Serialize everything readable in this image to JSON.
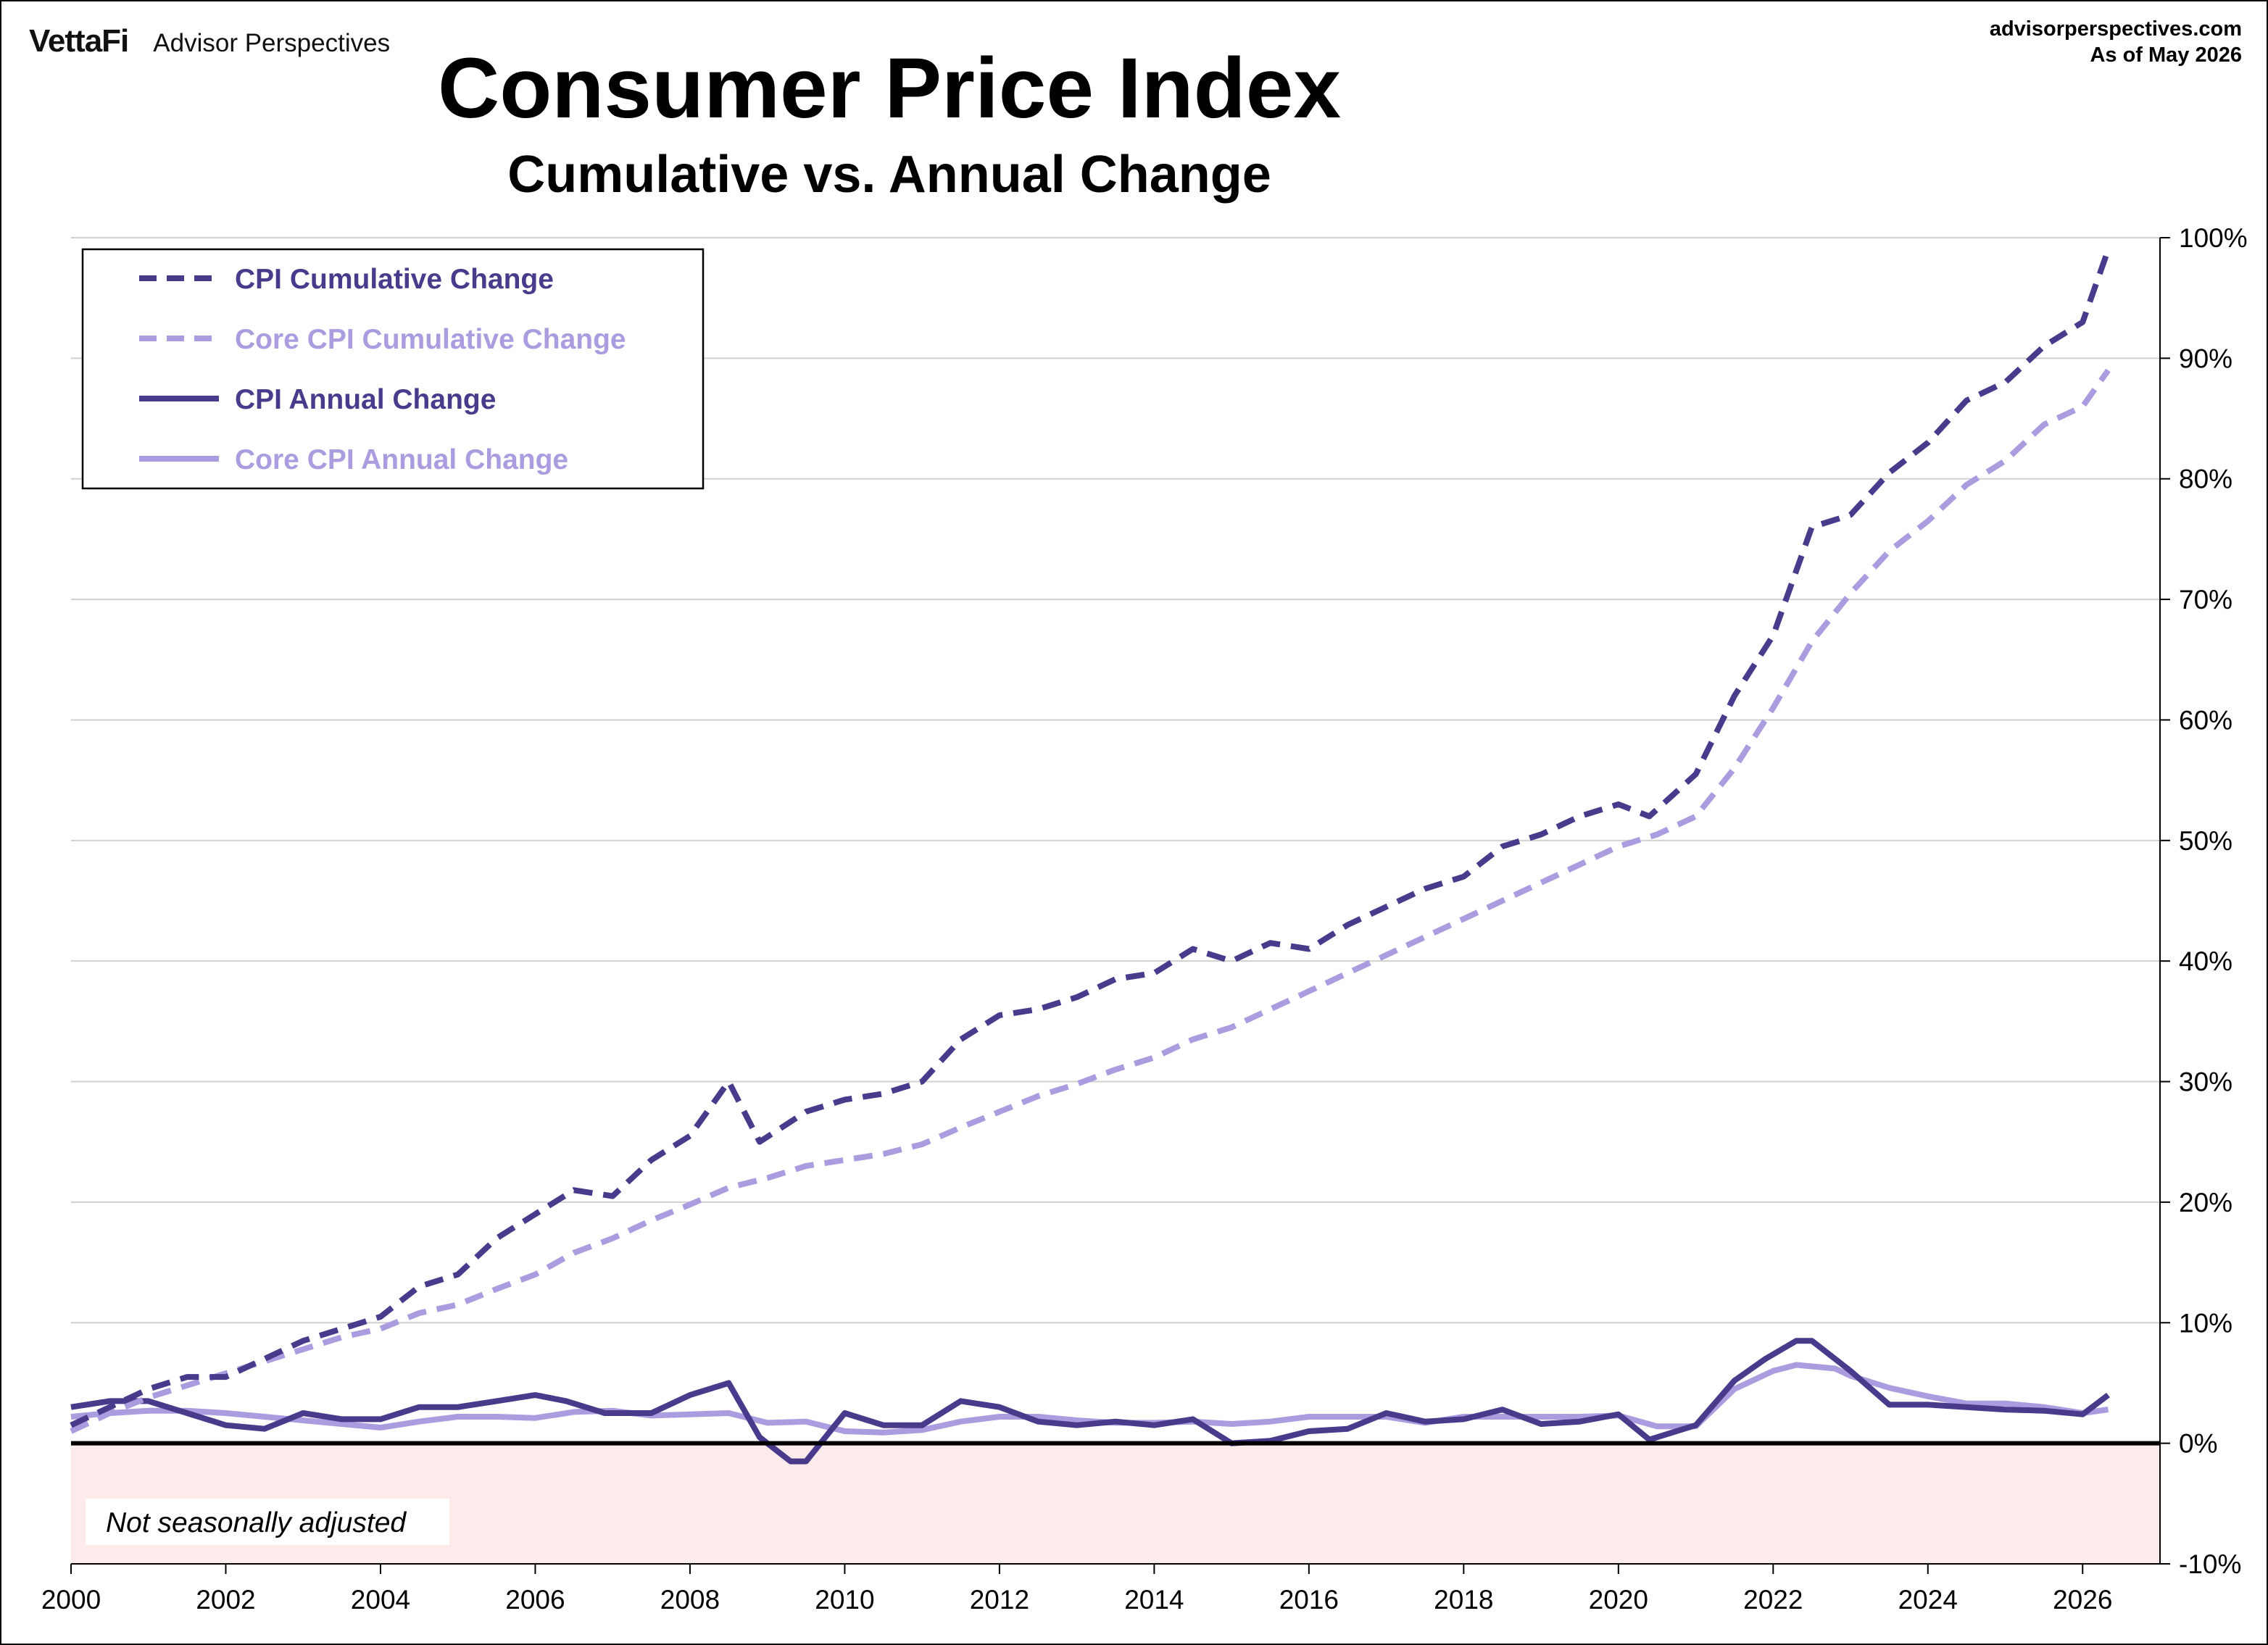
{
  "header": {
    "brand_logo": "VettaFi",
    "brand_name": "Advisor Perspectives",
    "source_url": "advisorperspectives.com",
    "as_of": "As of May 2026"
  },
  "note": "Not seasonally adjusted",
  "colors": {
    "cpi": "#4a3a8c",
    "core": "#ab9ce0",
    "negative_band": "#fdeaea",
    "grid": "#d0d0d0"
  },
  "chart_data": {
    "type": "line",
    "title": "Consumer Price Index",
    "subtitle": "Cumulative vs. Annual Change",
    "xlabel": "",
    "ylabel": "",
    "xlim": [
      2000.0,
      2027.0
    ],
    "ylim": [
      -10,
      100
    ],
    "x_ticks": [
      "2000",
      "2002",
      "2004",
      "2006",
      "2008",
      "2010",
      "2012",
      "2014",
      "2016",
      "2018",
      "2020",
      "2022",
      "2024",
      "2026"
    ],
    "y_ticks": [
      "100%",
      "90%",
      "80%",
      "70%",
      "60%",
      "50%",
      "40%",
      "30%",
      "20%",
      "10%",
      "0%",
      "-10%"
    ],
    "grid": true,
    "legend_position": "top-left",
    "series": [
      {
        "name": "CPI Cumulative Change",
        "style": "dashed",
        "x": [
          2000.0,
          2000.5,
          2001.0,
          2001.5,
          2002.0,
          2002.5,
          2003.0,
          2003.5,
          2004.0,
          2004.5,
          2005.0,
          2005.5,
          2006.0,
          2006.5,
          2007.0,
          2007.5,
          2008.0,
          2008.5,
          2008.9,
          2009.5,
          2010.0,
          2010.5,
          2011.0,
          2011.5,
          2012.0,
          2012.5,
          2013.0,
          2013.5,
          2014.0,
          2014.5,
          2015.0,
          2015.5,
          2016.0,
          2016.5,
          2017.0,
          2017.5,
          2018.0,
          2018.5,
          2019.0,
          2019.5,
          2020.0,
          2020.4,
          2021.0,
          2021.5,
          2022.0,
          2022.5,
          2023.0,
          2023.5,
          2024.0,
          2024.5,
          2025.0,
          2025.5,
          2026.0,
          2026.33
        ],
        "y": [
          1.5,
          3.0,
          4.5,
          5.5,
          5.5,
          7.0,
          8.5,
          9.5,
          10.5,
          13.0,
          14.0,
          17.0,
          19.0,
          21.0,
          20.5,
          23.5,
          25.5,
          30.0,
          25.0,
          27.5,
          28.5,
          29.0,
          30.0,
          33.5,
          35.5,
          36.0,
          37.0,
          38.5,
          39.0,
          41.0,
          40.0,
          41.5,
          41.0,
          43.0,
          44.5,
          46.0,
          47.0,
          49.5,
          50.5,
          52.0,
          53.0,
          52.0,
          55.5,
          62.0,
          67.0,
          76.0,
          77.0,
          80.5,
          83.0,
          86.5,
          88.0,
          91.0,
          93.0,
          99.0
        ]
      },
      {
        "name": "Core CPI Cumulative Change",
        "style": "dashed",
        "x": [
          2000.0,
          2000.5,
          2001.0,
          2001.5,
          2002.0,
          2002.5,
          2003.0,
          2003.5,
          2004.0,
          2004.5,
          2005.0,
          2005.5,
          2006.0,
          2006.5,
          2007.0,
          2007.5,
          2008.0,
          2008.5,
          2009.0,
          2009.5,
          2010.0,
          2010.5,
          2011.0,
          2011.5,
          2012.0,
          2012.5,
          2013.0,
          2013.5,
          2014.0,
          2014.5,
          2015.0,
          2015.5,
          2016.0,
          2016.5,
          2017.0,
          2017.5,
          2018.0,
          2018.5,
          2019.0,
          2019.5,
          2020.0,
          2020.5,
          2021.0,
          2021.5,
          2022.0,
          2022.5,
          2023.0,
          2023.5,
          2024.0,
          2024.5,
          2025.0,
          2025.5,
          2026.0,
          2026.33
        ],
        "y": [
          1.0,
          2.5,
          3.8,
          4.8,
          5.8,
          6.8,
          7.8,
          8.8,
          9.5,
          10.8,
          11.5,
          12.8,
          14.0,
          15.8,
          17.0,
          18.5,
          19.8,
          21.2,
          22.0,
          23.0,
          23.5,
          24.0,
          24.8,
          26.2,
          27.5,
          28.8,
          29.8,
          31.0,
          32.0,
          33.5,
          34.5,
          36.0,
          37.5,
          39.0,
          40.5,
          42.0,
          43.5,
          45.0,
          46.5,
          48.0,
          49.5,
          50.5,
          52.0,
          56.0,
          61.0,
          66.5,
          70.5,
          74.0,
          76.5,
          79.5,
          81.5,
          84.5,
          86.0,
          89.0
        ]
      },
      {
        "name": "CPI Annual Change",
        "style": "solid",
        "x": [
          2000.0,
          2000.5,
          2001.0,
          2001.5,
          2002.0,
          2002.5,
          2003.0,
          2003.5,
          2004.0,
          2004.5,
          2005.0,
          2005.5,
          2006.0,
          2006.4,
          2006.9,
          2007.5,
          2008.0,
          2008.5,
          2008.9,
          2009.3,
          2009.5,
          2010.0,
          2010.5,
          2011.0,
          2011.5,
          2012.0,
          2012.5,
          2013.0,
          2013.5,
          2014.0,
          2014.5,
          2015.0,
          2015.5,
          2016.0,
          2016.5,
          2017.0,
          2017.5,
          2018.0,
          2018.5,
          2019.0,
          2019.5,
          2020.0,
          2020.4,
          2021.0,
          2021.5,
          2021.9,
          2022.3,
          2022.5,
          2023.0,
          2023.5,
          2024.0,
          2024.5,
          2025.0,
          2025.5,
          2026.0,
          2026.33
        ],
        "y": [
          3.0,
          3.5,
          3.5,
          2.5,
          1.5,
          1.2,
          2.5,
          2.0,
          2.0,
          3.0,
          3.0,
          3.5,
          4.0,
          3.5,
          2.5,
          2.5,
          4.0,
          5.0,
          0.5,
          -1.5,
          -1.5,
          2.5,
          1.5,
          1.5,
          3.5,
          3.0,
          1.8,
          1.5,
          1.8,
          1.5,
          2.0,
          0.0,
          0.2,
          1.0,
          1.2,
          2.5,
          1.8,
          2.0,
          2.8,
          1.6,
          1.8,
          2.4,
          0.3,
          1.5,
          5.2,
          7.0,
          8.5,
          8.5,
          6.0,
          3.2,
          3.2,
          3.0,
          2.8,
          2.7,
          2.4,
          4.0
        ]
      },
      {
        "name": "Core CPI Annual Change",
        "style": "solid",
        "x": [
          2000.0,
          2000.5,
          2001.0,
          2001.5,
          2002.0,
          2002.5,
          2003.0,
          2003.5,
          2004.0,
          2004.5,
          2005.0,
          2005.5,
          2006.0,
          2006.5,
          2007.0,
          2007.5,
          2008.0,
          2008.5,
          2009.0,
          2009.5,
          2010.0,
          2010.5,
          2011.0,
          2011.5,
          2012.0,
          2012.5,
          2013.0,
          2013.5,
          2014.0,
          2014.5,
          2015.0,
          2015.5,
          2016.0,
          2016.5,
          2017.0,
          2017.5,
          2018.0,
          2018.5,
          2019.0,
          2019.5,
          2020.0,
          2020.5,
          2021.0,
          2021.5,
          2022.0,
          2022.3,
          2022.8,
          2023.0,
          2023.5,
          2024.0,
          2024.5,
          2025.0,
          2025.5,
          2026.0,
          2026.33
        ],
        "y": [
          2.2,
          2.5,
          2.7,
          2.7,
          2.5,
          2.2,
          1.9,
          1.6,
          1.3,
          1.8,
          2.2,
          2.2,
          2.1,
          2.6,
          2.7,
          2.3,
          2.4,
          2.5,
          1.7,
          1.8,
          1.0,
          0.9,
          1.1,
          1.8,
          2.2,
          2.2,
          1.9,
          1.7,
          1.7,
          1.8,
          1.6,
          1.8,
          2.2,
          2.2,
          2.2,
          1.7,
          2.2,
          2.2,
          2.2,
          2.2,
          2.3,
          1.4,
          1.4,
          4.5,
          6.0,
          6.5,
          6.2,
          5.6,
          4.6,
          3.9,
          3.3,
          3.3,
          3.0,
          2.5,
          2.8
        ]
      }
    ]
  }
}
